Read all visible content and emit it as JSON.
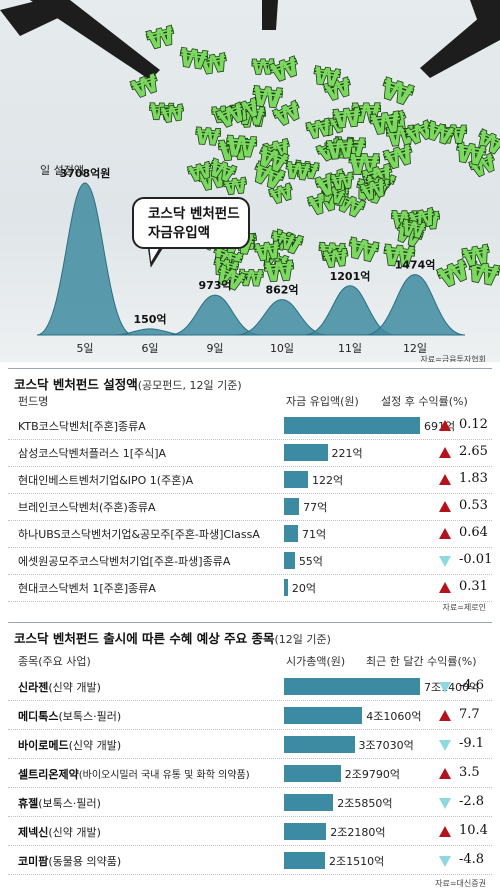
{
  "hero": {
    "daily_label": "일 설정액",
    "bubble_line1": "코스닥 벤처펀드",
    "bubble_line2": "자금유입액",
    "source": "자료=금융투자협회"
  },
  "chart_data": [
    {
      "type": "area",
      "categories": [
        "5일",
        "6일",
        "9일",
        "10일",
        "11일",
        "12일"
      ],
      "values": [
        3708,
        150,
        973,
        862,
        1201,
        1474
      ],
      "value_labels": [
        "3708억원",
        "150억",
        "973억",
        "862억",
        "1201억",
        "1474억"
      ],
      "ylim": [
        0,
        3708
      ]
    },
    {
      "type": "bar",
      "title": "코스닥 벤처펀드 설정액",
      "subtitle": "(공모펀드, 12일 기준)",
      "col_name": "펀드명",
      "col_value": "자금 유입액(원)",
      "col_return": "설정 후 수익률(%)",
      "categories": [
        "KTB코스닥벤처[주혼]종류A",
        "삼성코스닥벤처플러스 1[주식]A",
        "현대인베스트벤처기업&IPO 1(주혼)A",
        "브레인코스닥벤처(주혼)종류A",
        "하나UBS코스닥벤처기업&공모주[주혼-파생]ClassA",
        "에셋원공모주코스닥벤처기업[주혼-파생]종류A",
        "현대코스닥벤처 1[주혼]종류A"
      ],
      "values": [
        691,
        221,
        122,
        77,
        71,
        55,
        20
      ],
      "value_labels": [
        "691억",
        "221억",
        "122억",
        "77억",
        "71억",
        "55억",
        "20억"
      ],
      "returns": [
        0.12,
        2.65,
        1.83,
        0.53,
        0.64,
        -0.01,
        0.31
      ],
      "return_labels": [
        "0.12",
        "2.65",
        "1.83",
        "0.53",
        "0.64",
        "-0.01",
        "0.31"
      ],
      "source": "자료=제로인"
    },
    {
      "type": "bar",
      "title": "코스닥 벤처펀드 출시에 따른 수혜 예상 주요 종목",
      "subtitle": "(12일 기준)",
      "col_name": "종목(주요 사업)",
      "col_value": "시가총액(원)",
      "col_return": "최근 한 달간 수익률(%)",
      "names": [
        "신라젠",
        "메디톡스",
        "바이로메드",
        "셀트리온제약",
        "휴젤",
        "제넥신",
        "코미팜"
      ],
      "descs": [
        "(신약 개발)",
        "(보톡스·필러)",
        "(신약 개발)",
        "(바이오시밀러 국내 유통 및 화학 의약품)",
        "(보톡스·필러)",
        "(신약 개발)",
        "(동물용 의약품)"
      ],
      "values": [
        71400,
        41060,
        37030,
        29790,
        25850,
        22180,
        21510
      ],
      "value_labels": [
        "7조1400억",
        "4조1060억",
        "3조7030억",
        "2조9790억",
        "2조5850억",
        "2조2180억",
        "2조1510억"
      ],
      "returns": [
        -4.6,
        7.7,
        -9.1,
        3.5,
        -2.8,
        10.4,
        -4.8
      ],
      "return_labels": [
        "-4.6",
        "7.7",
        "-9.1",
        "3.5",
        "-2.8",
        "10.4",
        "-4.8"
      ],
      "source": "자료=대신증권"
    }
  ]
}
